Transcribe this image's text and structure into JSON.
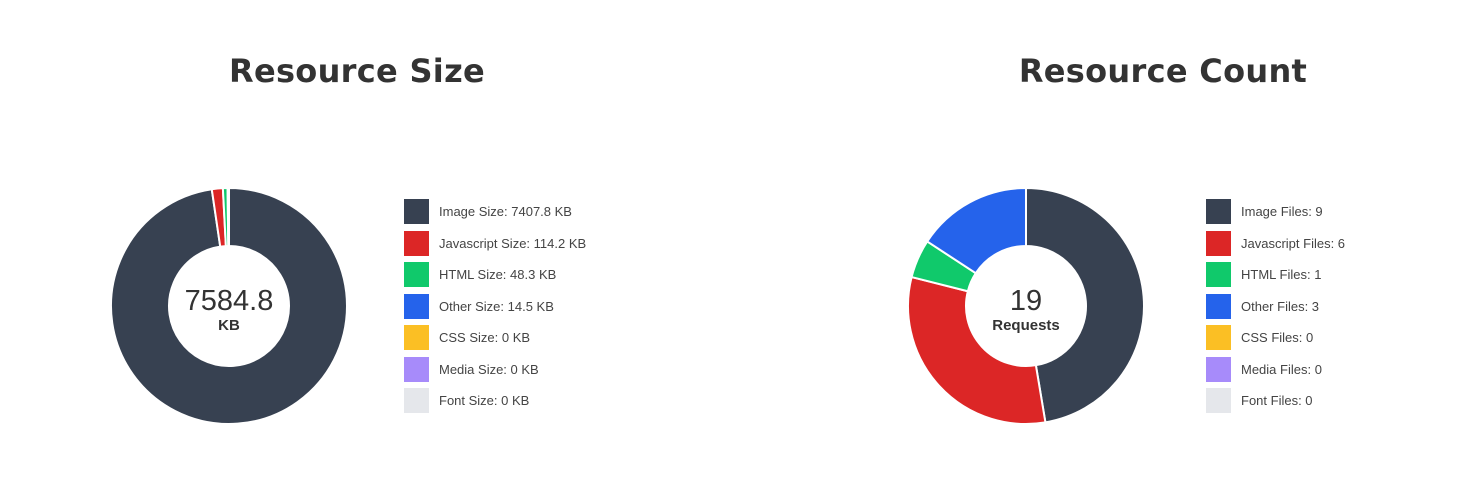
{
  "charts": [
    {
      "title": "Resource Size",
      "center_value": "7584.8",
      "center_unit": "KB",
      "legend": [
        {
          "label": "Image Size: 7407.8 KB",
          "color": "#374151"
        },
        {
          "label": "Javascript Size: 114.2 KB",
          "color": "#dc2626"
        },
        {
          "label": "HTML Size: 48.3 KB",
          "color": "#10c96b"
        },
        {
          "label": "Other Size: 14.5 KB",
          "color": "#2563eb"
        },
        {
          "label": "CSS Size: 0 KB",
          "color": "#fbbf24"
        },
        {
          "label": "Media Size: 0 KB",
          "color": "#a78bfa"
        },
        {
          "label": "Font Size: 0 KB",
          "color": "#e5e7eb"
        }
      ]
    },
    {
      "title": "Resource Count",
      "center_value": "19",
      "center_unit": "Requests",
      "legend": [
        {
          "label": "Image Files: 9",
          "color": "#374151"
        },
        {
          "label": "Javascript Files: 6",
          "color": "#dc2626"
        },
        {
          "label": "HTML Files: 1",
          "color": "#10c96b"
        },
        {
          "label": "Other Files: 3",
          "color": "#2563eb"
        },
        {
          "label": "CSS Files: 0",
          "color": "#fbbf24"
        },
        {
          "label": "Media Files: 0",
          "color": "#a78bfa"
        },
        {
          "label": "Font Files: 0",
          "color": "#e5e7eb"
        }
      ]
    }
  ],
  "chart_data": [
    {
      "type": "pie",
      "title": "Resource Size",
      "categories": [
        "Image",
        "Javascript",
        "HTML",
        "Other",
        "CSS",
        "Media",
        "Font"
      ],
      "values": [
        7407.8,
        114.2,
        48.3,
        14.5,
        0,
        0,
        0
      ],
      "unit": "KB",
      "total": 7584.8,
      "colors": [
        "#374151",
        "#dc2626",
        "#10c96b",
        "#2563eb",
        "#fbbf24",
        "#a78bfa",
        "#e5e7eb"
      ],
      "donut": true,
      "legend_position": "right"
    },
    {
      "type": "pie",
      "title": "Resource Count",
      "categories": [
        "Image",
        "Javascript",
        "HTML",
        "Other",
        "CSS",
        "Media",
        "Font"
      ],
      "values": [
        9,
        6,
        1,
        3,
        0,
        0,
        0
      ],
      "unit": "Requests",
      "total": 19,
      "colors": [
        "#374151",
        "#dc2626",
        "#10c96b",
        "#2563eb",
        "#fbbf24",
        "#a78bfa",
        "#e5e7eb"
      ],
      "donut": true,
      "legend_position": "right"
    }
  ]
}
